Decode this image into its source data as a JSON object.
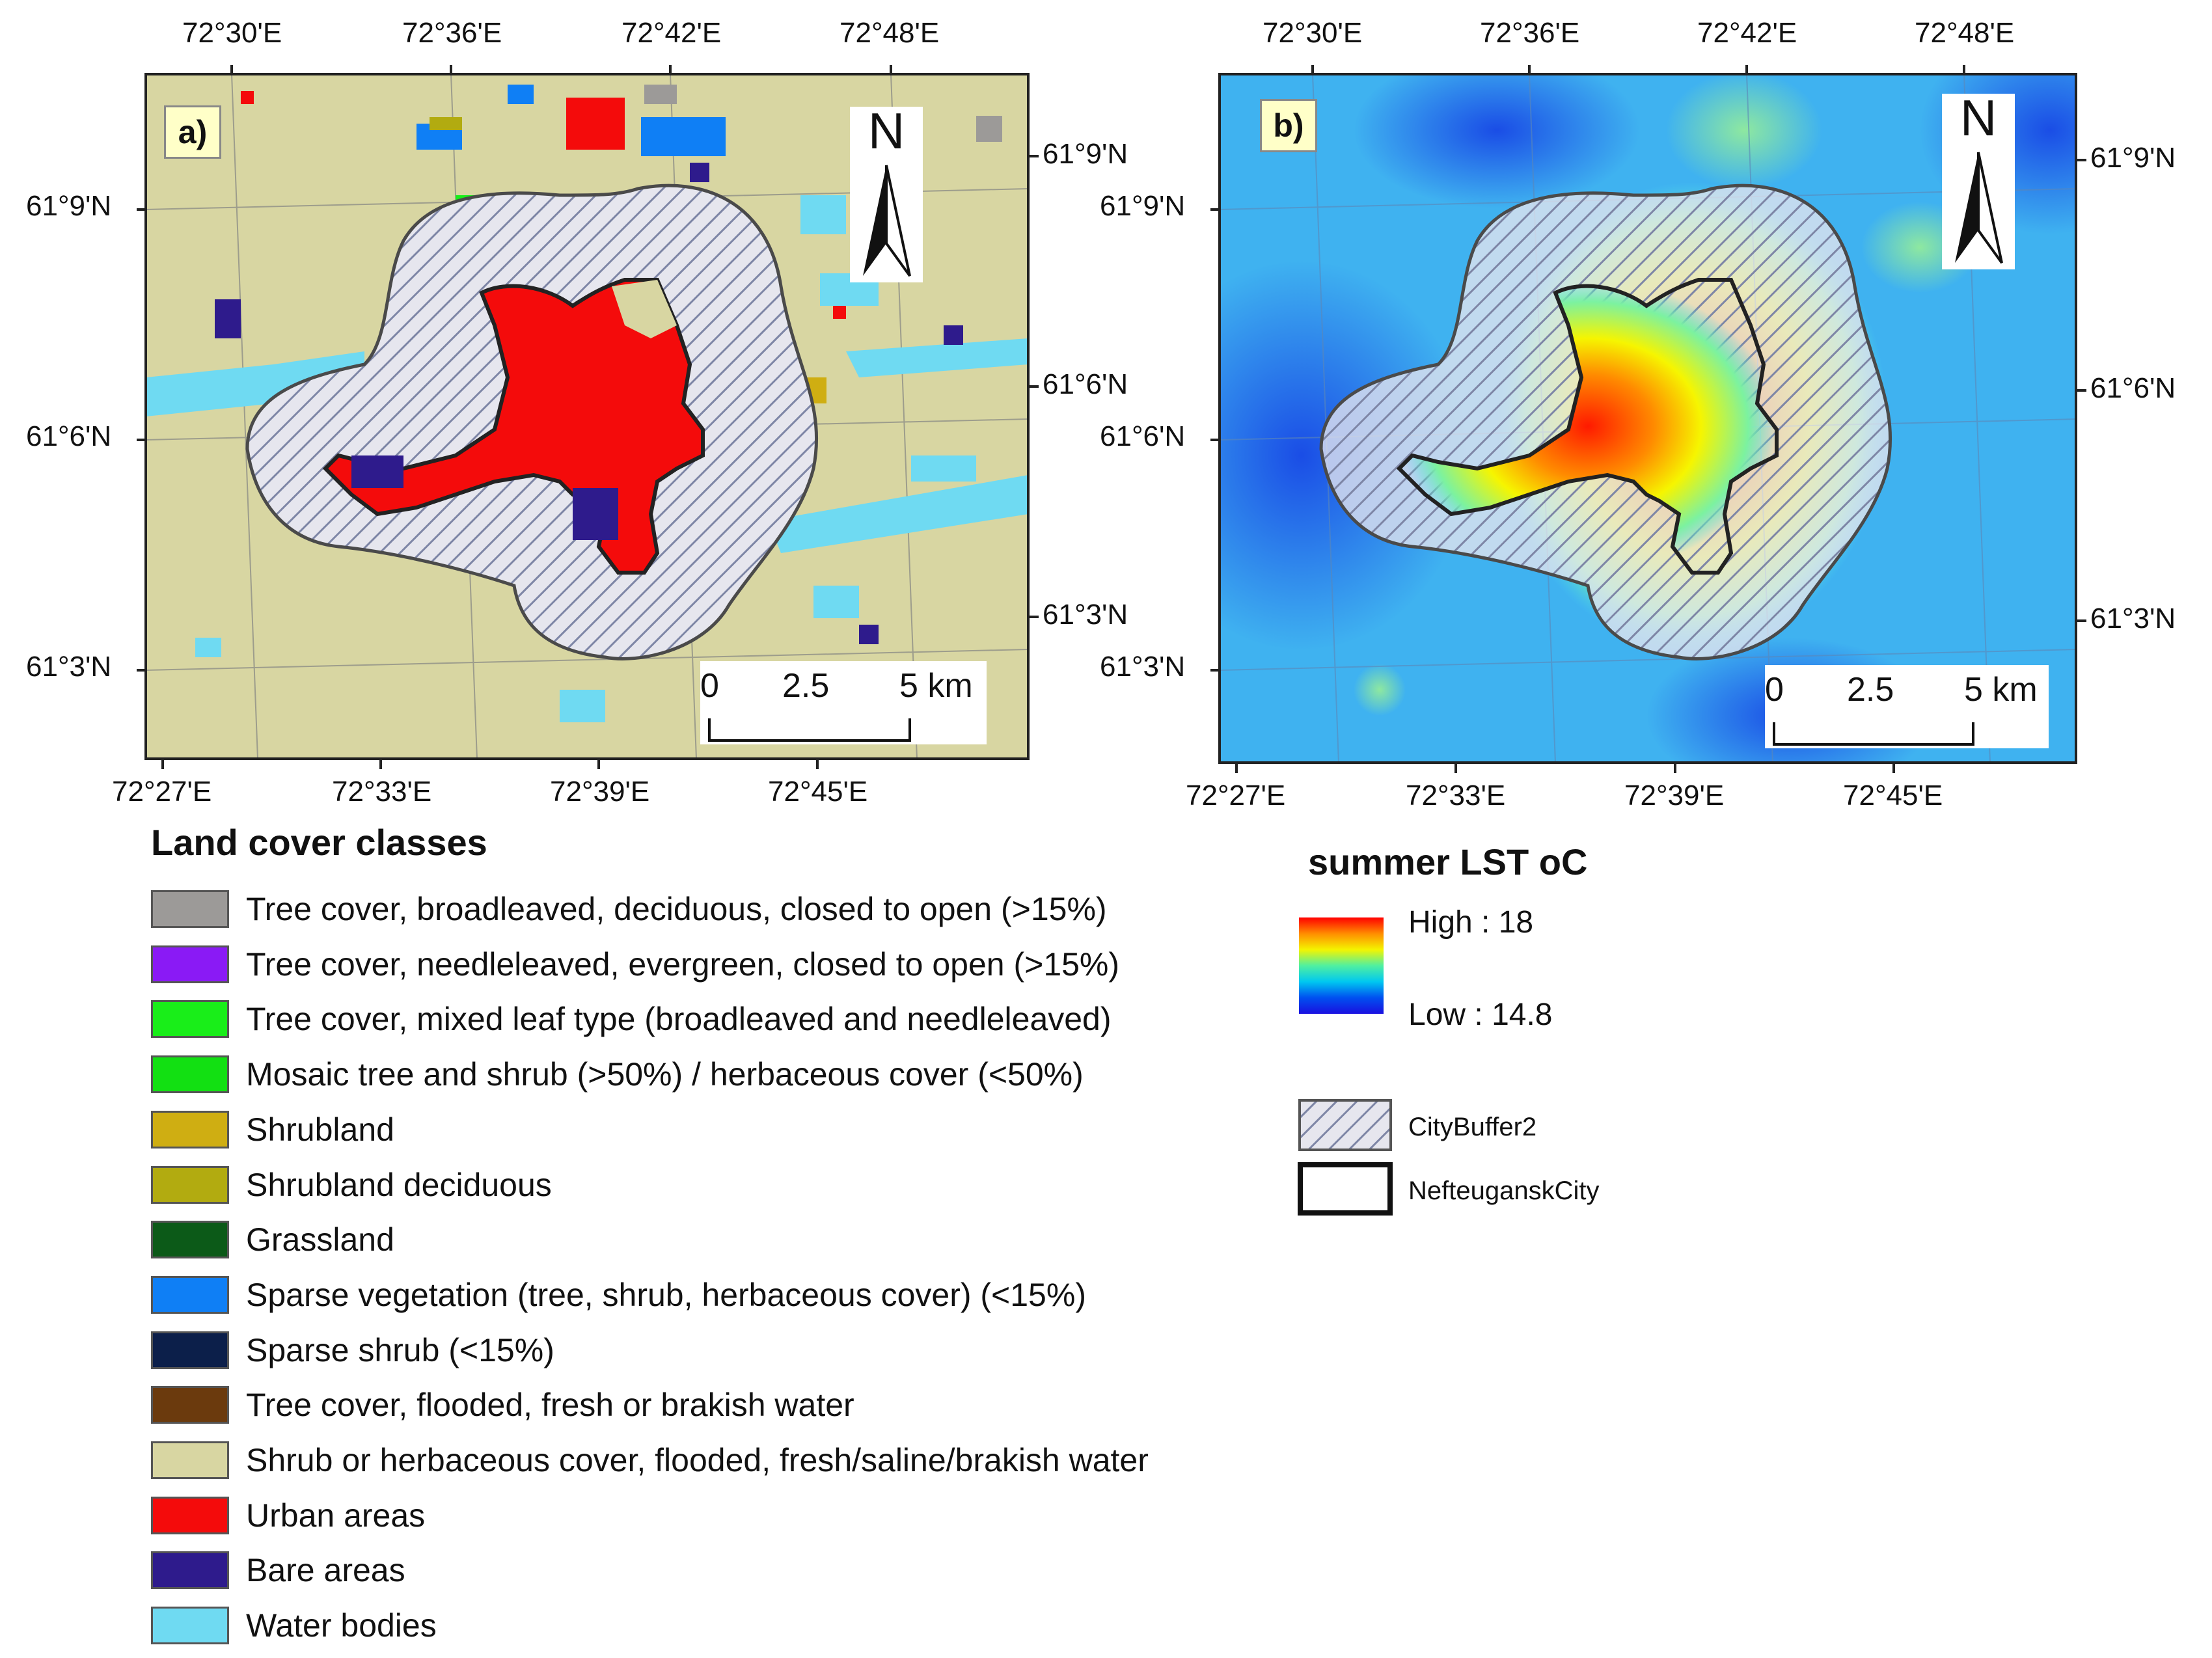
{
  "panel_a": {
    "label": "a)",
    "north": "N",
    "top_ticks": [
      "72°30'E",
      "72°36'E",
      "72°42'E",
      "72°48'E"
    ],
    "bottom_ticks": [
      "72°27'E",
      "72°33'E",
      "72°39'E",
      "72°45'E"
    ],
    "left_ticks": [
      "61°9'N",
      "61°6'N",
      "61°3'N"
    ],
    "right_ticks": [
      "61°9'N",
      "61°6'N",
      "61°3'N"
    ],
    "scale": {
      "zero": "0",
      "mid": "2.5",
      "end": "5 km"
    }
  },
  "panel_b": {
    "label": "b)",
    "north": "N",
    "top_ticks": [
      "72°30'E",
      "72°36'E",
      "72°42'E",
      "72°48'E"
    ],
    "bottom_ticks": [
      "72°27'E",
      "72°33'E",
      "72°39'E",
      "72°45'E"
    ],
    "left_ticks": [
      "61°9'N",
      "61°6'N",
      "61°3'N"
    ],
    "right_ticks": [
      "61°9'N",
      "61°6'N",
      "61°3'N"
    ],
    "scale": {
      "zero": "0",
      "mid": "2.5",
      "end": "5 km"
    }
  },
  "land_cover_legend": {
    "title": "Land cover classes",
    "items": [
      {
        "label": "Tree cover, broadleaved, deciduous, closed to open (>15%)",
        "color": "#9c9a98"
      },
      {
        "label": "Tree cover, needleleaved, evergreen, closed to open (>15%)",
        "color": "#8a1af5"
      },
      {
        "label": "Tree cover, mixed leaf type (broadleaved and needleleaved)",
        "color": "#19ee19"
      },
      {
        "label": "Mosaic tree and shrub (>50%) / herbaceous cover (<50%)",
        "color": "#12e012"
      },
      {
        "label": "Shrubland",
        "color": "#cfae12"
      },
      {
        "label": "Shrubland deciduous",
        "color": "#b2ab10"
      },
      {
        "label": "Grassland",
        "color": "#0c5a18"
      },
      {
        "label": "Sparse vegetation (tree, shrub, herbaceous cover) (<15%)",
        "color": "#0f7ff5"
      },
      {
        "label": "Sparse shrub (<15%)",
        "color": "#0c1f4a"
      },
      {
        "label": "Tree cover, flooded, fresh or brakish water",
        "color": "#6b3a0d"
      },
      {
        "label": "Shrub or herbaceous cover, flooded, fresh/saline/brakish water",
        "color": "#d8d6a2"
      },
      {
        "label": "Urban areas",
        "color": "#f40b0b"
      },
      {
        "label": "Bare areas",
        "color": "#2e1b8c"
      },
      {
        "label": "Water bodies",
        "color": "#6fdaf2"
      }
    ]
  },
  "lst_legend": {
    "title": "summer LST oC",
    "high": "High : 18",
    "low": "Low : 14.8",
    "buffer_label": "CityBuffer2",
    "city_label": "NefteuganskCity"
  }
}
